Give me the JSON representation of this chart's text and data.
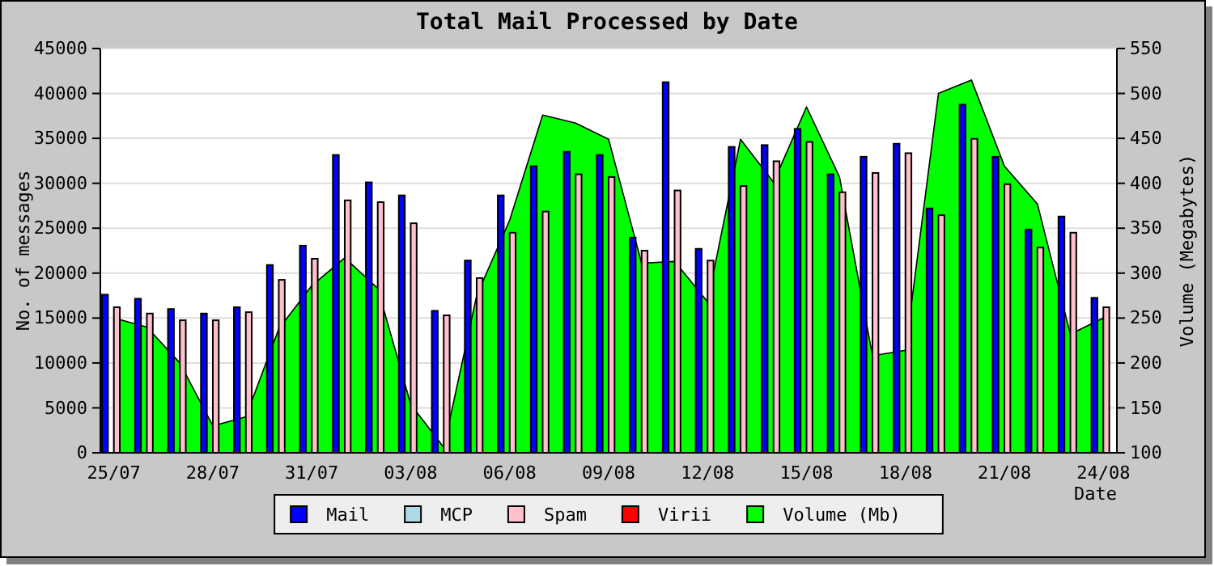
{
  "chart_data": {
    "type": "bar",
    "title": "Total Mail Processed by Date",
    "xlabel": "Date",
    "ylabel": "No. of messages",
    "y2label": "Volume (Megabytes)",
    "categories": [
      "25/07",
      null,
      null,
      "28/07",
      null,
      null,
      "31/07",
      null,
      null,
      "03/08",
      null,
      null,
      "06/08",
      null,
      null,
      "09/08",
      null,
      null,
      "12/08",
      null,
      null,
      "15/08",
      null,
      null,
      "18/08",
      null,
      null,
      "21/08",
      null,
      null,
      "24/08"
    ],
    "series": [
      {
        "name": "Mail",
        "color": "#0000ff",
        "values": [
          17600,
          17150,
          16000,
          15500,
          16200,
          20900,
          23050,
          33150,
          30100,
          28650,
          15800,
          21400,
          28650,
          31900,
          33500,
          33150,
          23950,
          41250,
          22700,
          34050,
          34250,
          36050,
          31000,
          32950,
          34400,
          27200,
          38750,
          32950,
          24850,
          26300,
          17250
        ]
      },
      {
        "name": "MCP",
        "color": "#add8e6",
        "values": [
          0,
          0,
          0,
          0,
          0,
          0,
          0,
          0,
          0,
          0,
          0,
          0,
          0,
          0,
          0,
          0,
          0,
          0,
          0,
          0,
          0,
          0,
          0,
          0,
          0,
          0,
          0,
          0,
          0,
          0,
          0
        ]
      },
      {
        "name": "Spam",
        "color": "#ffc0cb",
        "values": [
          16200,
          15500,
          14750,
          14750,
          15650,
          19250,
          21600,
          28100,
          27900,
          25550,
          15300,
          19450,
          24500,
          26850,
          31000,
          30700,
          22500,
          29200,
          21400,
          29700,
          32450,
          34600,
          29000,
          31150,
          33350,
          26450,
          34950,
          29900,
          22850,
          24500,
          16200
        ]
      },
      {
        "name": "Virii",
        "color": "#ff0000",
        "values": [
          0,
          0,
          0,
          0,
          0,
          0,
          0,
          0,
          0,
          0,
          0,
          0,
          0,
          0,
          0,
          0,
          0,
          0,
          0,
          0,
          0,
          0,
          0,
          0,
          0,
          0,
          0,
          0,
          0,
          0,
          0
        ]
      },
      {
        "name": "Volume (Mb)",
        "color": "#00ff00",
        "type": "area",
        "axis": "y2",
        "values": [
          250,
          240,
          200,
          130,
          140,
          238,
          286,
          317,
          283,
          154,
          106,
          275,
          359,
          476,
          467,
          449,
          311,
          313,
          268,
          449,
          401,
          485,
          407,
          208,
          214,
          500,
          515,
          419,
          377,
          232,
          250
        ]
      }
    ],
    "ylim": [
      0,
      45000
    ],
    "yticks": [
      0,
      5000,
      10000,
      15000,
      20000,
      25000,
      30000,
      35000,
      40000,
      45000
    ],
    "y2lim": [
      100,
      550
    ],
    "y2ticks": [
      100,
      150,
      200,
      250,
      300,
      350,
      400,
      450,
      500,
      550
    ],
    "grid": "y",
    "legend": "bottom"
  }
}
